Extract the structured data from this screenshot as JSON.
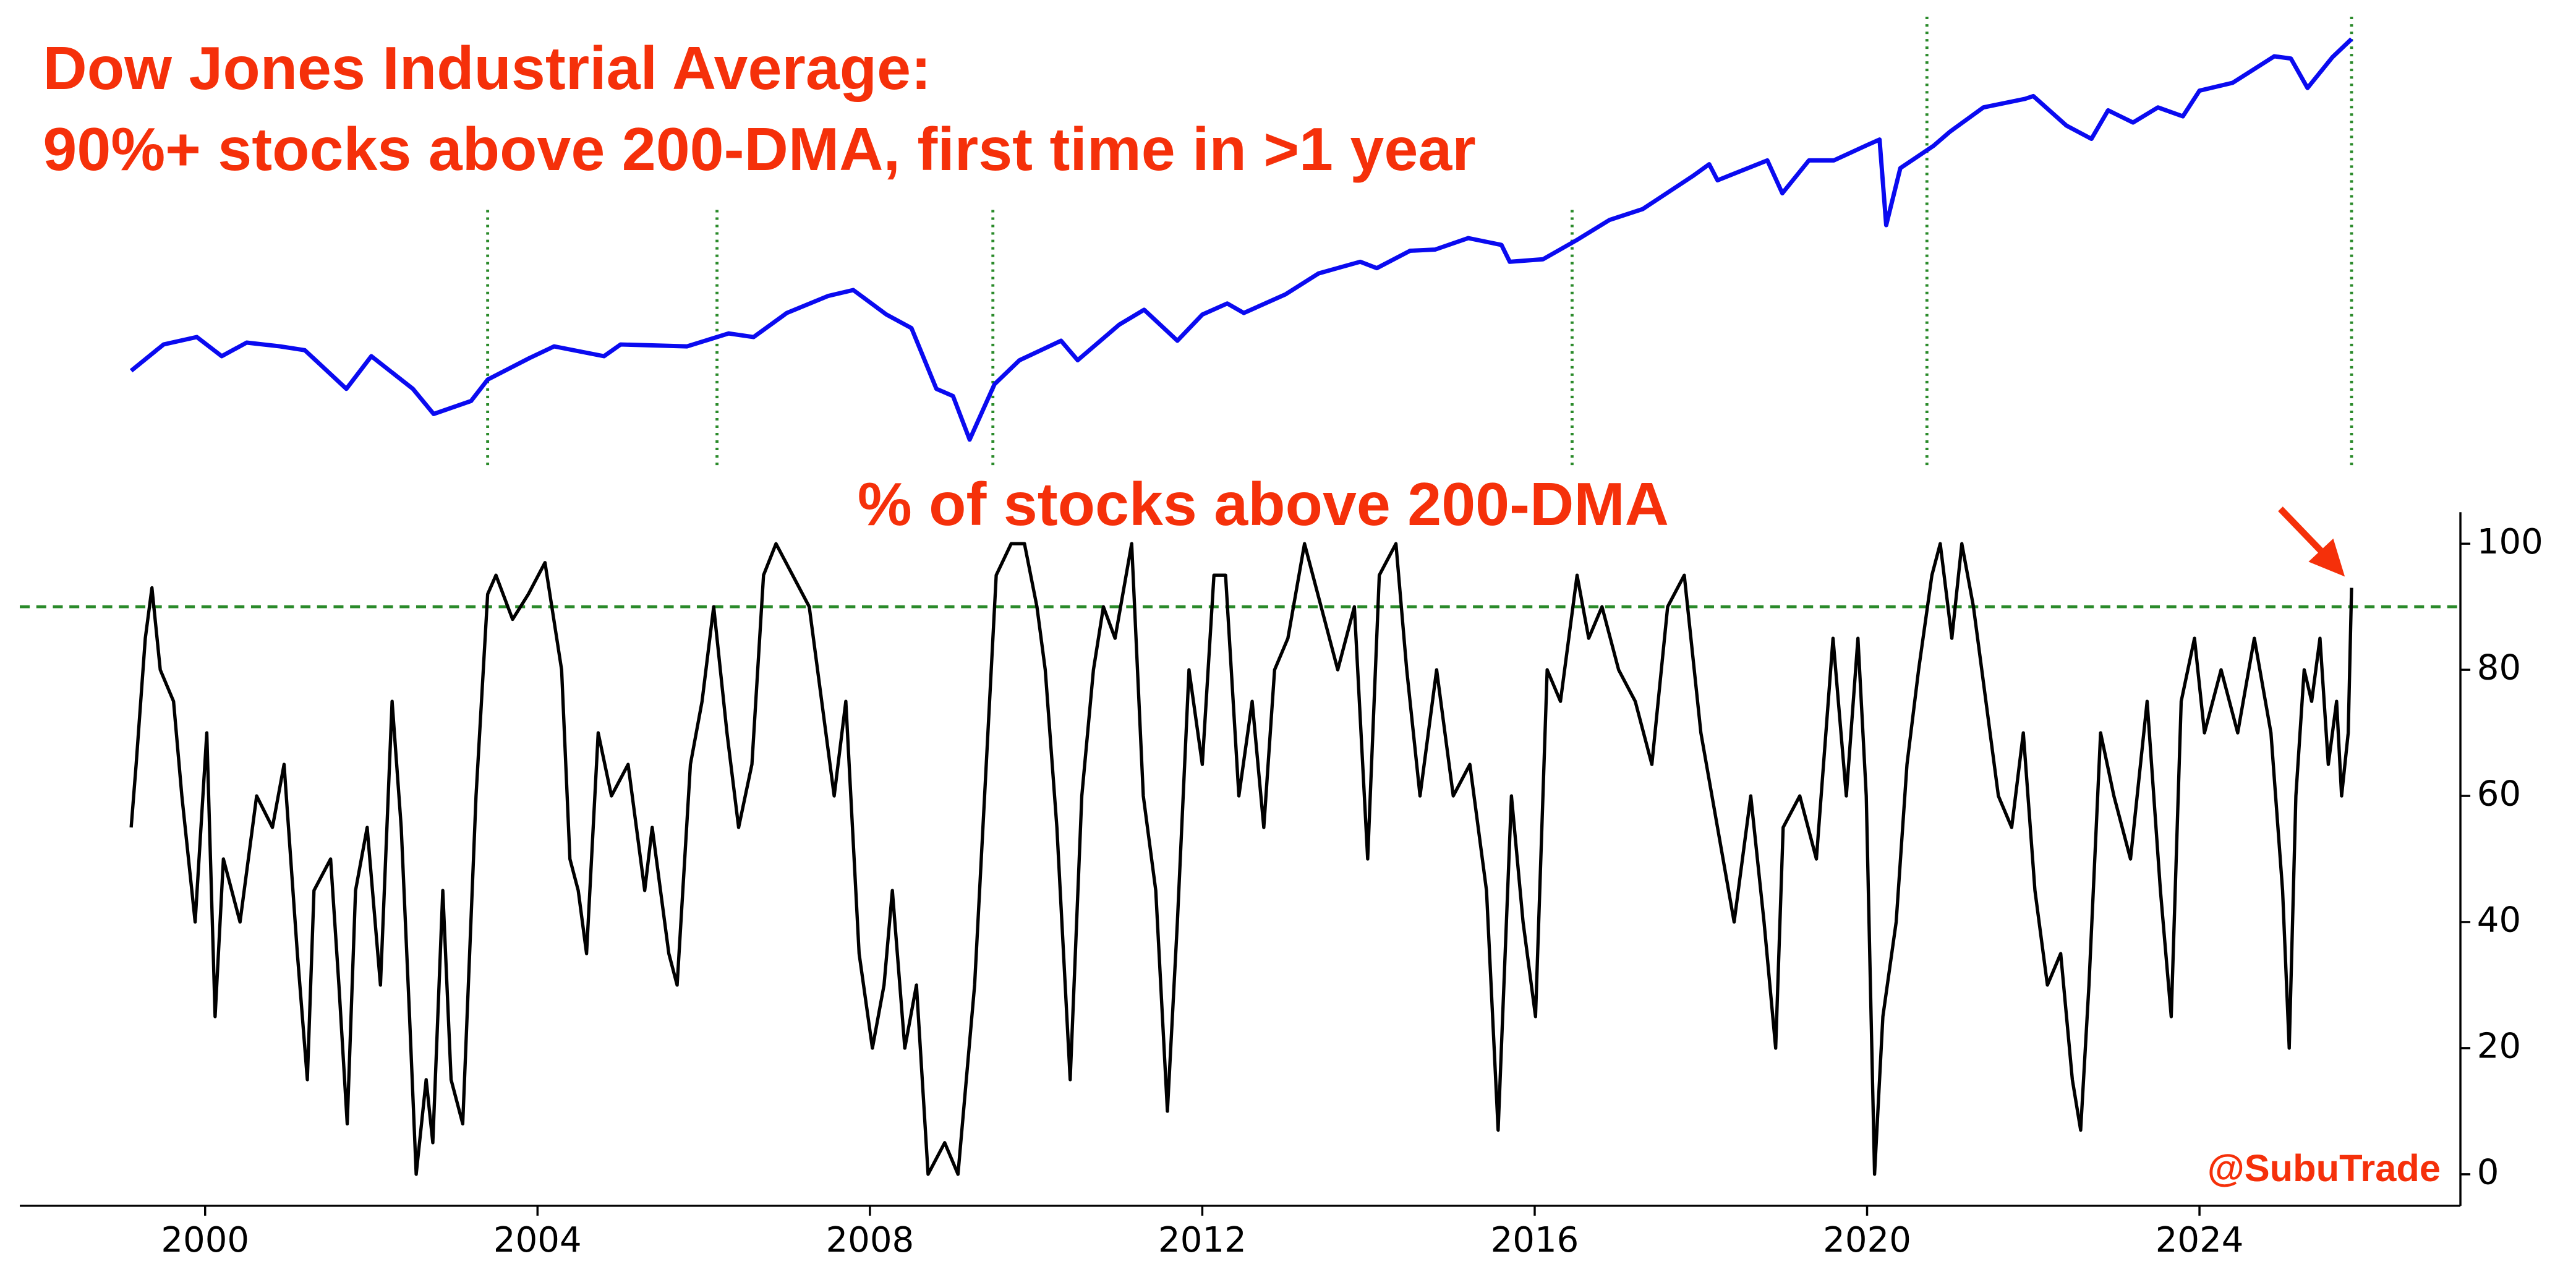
{
  "chart_data": [
    {
      "type": "line",
      "title": [
        "Dow Jones Industrial Average:",
        "90%+ stocks above 200-DMA, first time in >1 year"
      ],
      "color": "#0a0af0",
      "log_scale": true,
      "xlim": [
        1997.77,
        2027.14
      ],
      "ylim": [
        5650,
        52000
      ],
      "signals": [
        2003.4,
        2006.16,
        2009.48,
        2016.45,
        2020.72,
        2025.83
      ],
      "signal_color": "#2a8a2a",
      "x": [
        1999.11,
        1999.5,
        1999.9,
        2000.2,
        2000.5,
        2000.9,
        2001.2,
        2001.7,
        2002.0,
        2002.5,
        2002.75,
        2003.2,
        2003.4,
        2003.9,
        2004.2,
        2004.8,
        2005.0,
        2005.8,
        2006.3,
        2006.6,
        2007.0,
        2007.5,
        2007.8,
        2008.2,
        2008.5,
        2008.8,
        2009.0,
        2009.2,
        2009.5,
        2009.8,
        2010.3,
        2010.5,
        2011.0,
        2011.3,
        2011.7,
        2012.0,
        2012.3,
        2012.5,
        2013.0,
        2013.4,
        2013.9,
        2014.1,
        2014.5,
        2014.8,
        2015.2,
        2015.6,
        2015.7,
        2016.1,
        2016.5,
        2016.9,
        2017.3,
        2017.9,
        2018.1,
        2018.2,
        2018.8,
        2018.98,
        2019.3,
        2019.6,
        2020.0,
        2020.15,
        2020.23,
        2020.4,
        2020.8,
        2021.0,
        2021.4,
        2021.9,
        2022.0,
        2022.4,
        2022.7,
        2022.9,
        2023.2,
        2023.5,
        2023.8,
        2024.0,
        2024.4,
        2024.9,
        2025.1,
        2025.3,
        2025.6,
        2025.83
      ],
      "values": [
        9300,
        10600,
        11000,
        10000,
        10700,
        10500,
        10300,
        8500,
        10000,
        8500,
        7500,
        8000,
        8900,
        9900,
        10500,
        10000,
        10600,
        10500,
        11200,
        11000,
        12400,
        13500,
        13900,
        12300,
        11500,
        8500,
        8200,
        6600,
        8700,
        9800,
        10800,
        9800,
        11700,
        12600,
        10800,
        12300,
        13000,
        12400,
        13600,
        15100,
        16000,
        15500,
        16900,
        17000,
        18000,
        17400,
        16000,
        16200,
        17800,
        19700,
        20800,
        24500,
        26000,
        24000,
        26500,
        22500,
        26500,
        26500,
        28600,
        29400,
        19200,
        25500,
        28500,
        30600,
        34500,
        36000,
        36500,
        31500,
        29500,
        34000,
        32000,
        34500,
        33000,
        37500,
        39000,
        44500,
        44000,
        38000,
        44300,
        48500
      ]
    },
    {
      "type": "line",
      "title": "% of stocks above 200-DMA",
      "watermark": "@SubuTrade",
      "color": "#000000",
      "xlim": [
        1997.77,
        2027.14
      ],
      "ylim": [
        -5,
        105
      ],
      "yticks": [
        0,
        20,
        40,
        60,
        80,
        100
      ],
      "xticks": [
        2000,
        2004,
        2008,
        2012,
        2016,
        2020,
        2024
      ],
      "threshold": 90,
      "threshold_color": "#2a8a2a",
      "x": [
        1999.11,
        1999.17,
        1999.28,
        1999.36,
        1999.46,
        1999.62,
        1999.72,
        1999.88,
        2000.02,
        2000.12,
        2000.22,
        2000.42,
        2000.62,
        2000.81,
        2000.95,
        2001.11,
        2001.23,
        2001.31,
        2001.51,
        2001.61,
        2001.71,
        2001.81,
        2001.95,
        2002.11,
        2002.25,
        2002.36,
        2002.46,
        2002.54,
        2002.66,
        2002.74,
        2002.86,
        2002.96,
        2003.1,
        2003.26,
        2003.4,
        2003.5,
        2003.7,
        2003.89,
        2004.09,
        2004.29,
        2004.39,
        2004.49,
        2004.59,
        2004.73,
        2004.89,
        2005.09,
        2005.29,
        2005.38,
        2005.58,
        2005.68,
        2005.84,
        2005.98,
        2006.12,
        2006.28,
        2006.42,
        2006.58,
        2006.72,
        2006.87,
        2007.07,
        2007.27,
        2007.47,
        2007.57,
        2007.71,
        2007.87,
        2008.03,
        2008.17,
        2008.27,
        2008.42,
        2008.56,
        2008.7,
        2008.9,
        2009.06,
        2009.26,
        2009.38,
        2009.52,
        2009.7,
        2009.86,
        2010.01,
        2010.11,
        2010.25,
        2010.41,
        2010.55,
        2010.69,
        2010.81,
        2010.95,
        2011.15,
        2011.29,
        2011.44,
        2011.58,
        2011.7,
        2011.84,
        2012.0,
        2012.14,
        2012.28,
        2012.44,
        2012.6,
        2012.74,
        2012.87,
        2013.03,
        2013.23,
        2013.43,
        2013.63,
        2013.83,
        2013.99,
        2014.13,
        2014.33,
        2014.46,
        2014.62,
        2014.82,
        2015.02,
        2015.22,
        2015.42,
        2015.56,
        2015.72,
        2015.86,
        2016.01,
        2016.15,
        2016.31,
        2016.51,
        2016.65,
        2016.81,
        2017.01,
        2017.21,
        2017.41,
        2017.6,
        2017.8,
        2018.0,
        2018.2,
        2018.4,
        2018.6,
        2018.76,
        2018.9,
        2018.99,
        2019.19,
        2019.39,
        2019.59,
        2019.75,
        2019.89,
        2019.99,
        2020.09,
        2020.19,
        2020.35,
        2020.48,
        2020.62,
        2020.78,
        2020.88,
        2021.02,
        2021.14,
        2021.28,
        2021.38,
        2021.58,
        2021.74,
        2021.88,
        2022.02,
        2022.17,
        2022.33,
        2022.47,
        2022.57,
        2022.67,
        2022.81,
        2022.97,
        2023.17,
        2023.37,
        2023.53,
        2023.66,
        2023.78,
        2023.94,
        2024.06,
        2024.26,
        2024.46,
        2024.66,
        2024.86,
        2025.0,
        2025.08,
        2025.16,
        2025.26,
        2025.35,
        2025.45,
        2025.55,
        2025.65,
        2025.71,
        2025.79,
        2025.83
      ],
      "values": [
        55,
        65,
        85,
        93,
        80,
        75,
        60,
        40,
        70,
        25,
        50,
        40,
        60,
        55,
        65,
        35,
        15,
        45,
        50,
        30,
        8,
        45,
        55,
        30,
        75,
        55,
        25,
        0,
        15,
        5,
        45,
        15,
        8,
        60,
        92,
        95,
        88,
        92,
        97,
        80,
        50,
        45,
        35,
        70,
        60,
        65,
        45,
        55,
        35,
        30,
        65,
        75,
        90,
        70,
        55,
        65,
        95,
        100,
        95,
        90,
        70,
        60,
        75,
        35,
        20,
        30,
        45,
        20,
        30,
        0,
        5,
        0,
        30,
        60,
        95,
        100,
        100,
        90,
        80,
        55,
        15,
        60,
        80,
        90,
        85,
        100,
        60,
        45,
        10,
        40,
        80,
        65,
        95,
        95,
        60,
        75,
        55,
        80,
        85,
        100,
        90,
        80,
        90,
        50,
        95,
        100,
        80,
        60,
        80,
        60,
        65,
        45,
        7,
        60,
        40,
        25,
        80,
        75,
        95,
        85,
        90,
        80,
        75,
        65,
        90,
        95,
        70,
        55,
        40,
        60,
        40,
        20,
        55,
        60,
        50,
        85,
        60,
        85,
        60,
        0,
        25,
        40,
        65,
        80,
        95,
        100,
        85,
        100,
        90,
        80,
        60,
        55,
        70,
        45,
        30,
        35,
        15,
        7,
        30,
        70,
        60,
        50,
        75,
        45,
        25,
        75,
        85,
        70,
        80,
        70,
        85,
        70,
        45,
        20,
        60,
        80,
        75,
        85,
        65,
        75,
        60,
        70,
        93
      ]
    }
  ]
}
